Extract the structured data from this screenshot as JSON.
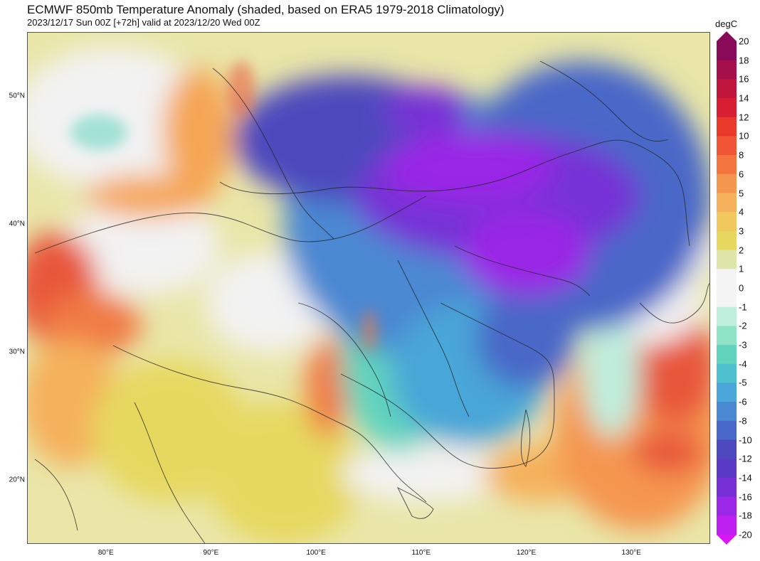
{
  "header": {
    "title": "ECMWF 850mb Temperature Anomaly (shaded, based on ERA5 1979-2018 Climatology)",
    "subtitle": "2023/12/17 Sun 00Z [+72h] valid at 2023/12/20 Wed 00Z"
  },
  "colorbar": {
    "unit": "degC",
    "labels": [
      "20",
      "18",
      "16",
      "14",
      "12",
      "10",
      "8",
      "6",
      "5",
      "4",
      "3",
      "2",
      "1",
      "0",
      "-1",
      "-2",
      "-3",
      "-4",
      "-5",
      "-6",
      "-8",
      "-10",
      "-12",
      "-14",
      "-16",
      "-18",
      "-20"
    ],
    "colors": [
      "#8a0a5a",
      "#a50f4a",
      "#c0163d",
      "#d81e32",
      "#e8392a",
      "#f05535",
      "#f4753f",
      "#f5964f",
      "#f5b15c",
      "#f0c85e",
      "#e6d85e",
      "#dde6a8",
      "#f4f4f4",
      "#f4f4f4",
      "#bfeedd",
      "#8fe3c6",
      "#62d4bd",
      "#4fc0cd",
      "#4aa6d8",
      "#4b88d2",
      "#4967c8",
      "#4d48bd",
      "#5a3ac4",
      "#7630d6",
      "#9a28e6",
      "#bd20f0",
      "#d818f2"
    ]
  },
  "axes": {
    "lat_labels": [
      {
        "text": "50°N",
        "lat": 50
      },
      {
        "text": "40°N",
        "lat": 40
      },
      {
        "text": "30°N",
        "lat": 30
      },
      {
        "text": "20°N",
        "lat": 20
      }
    ],
    "lon_labels": [
      {
        "text": "80°E",
        "lon": 80
      },
      {
        "text": "90°E",
        "lon": 90
      },
      {
        "text": "100°E",
        "lon": 100
      },
      {
        "text": "110°E",
        "lon": 110
      },
      {
        "text": "120°E",
        "lon": 120
      },
      {
        "text": "130°E",
        "lon": 130
      }
    ]
  }
}
